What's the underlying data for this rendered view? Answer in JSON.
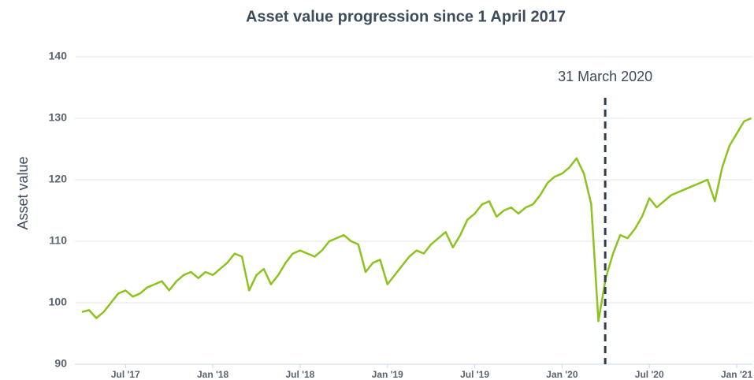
{
  "chart_data": {
    "type": "line",
    "title": "Asset value progression since 1 April 2017",
    "ylabel": "Asset value",
    "xlim": [
      2017.21,
      2021.09
    ],
    "ylim": [
      90,
      140
    ],
    "yticks": [
      90,
      100,
      110,
      120,
      130,
      140
    ],
    "xticks": [
      {
        "value": 2017.5,
        "label": "Jul '17"
      },
      {
        "value": 2018.0,
        "label": "Jan '18"
      },
      {
        "value": 2018.5,
        "label": "Jul '18"
      },
      {
        "value": 2019.0,
        "label": "Jan '19"
      },
      {
        "value": 2019.5,
        "label": "Jul '19"
      },
      {
        "value": 2020.0,
        "label": "Jan '20"
      },
      {
        "value": 2020.5,
        "label": "Jul '20"
      },
      {
        "value": 2021.0,
        "label": "Jan '21"
      }
    ],
    "grid": true,
    "annotation": {
      "x": 2020.247,
      "label": "31 March 2020",
      "color": "#2f3e4e"
    },
    "x": [
      2017.25,
      2017.292,
      2017.333,
      2017.375,
      2017.417,
      2017.458,
      2017.5,
      2017.542,
      2017.583,
      2017.625,
      2017.667,
      2017.708,
      2017.75,
      2017.792,
      2017.833,
      2017.875,
      2017.917,
      2017.958,
      2018.0,
      2018.042,
      2018.083,
      2018.125,
      2018.167,
      2018.208,
      2018.25,
      2018.292,
      2018.333,
      2018.375,
      2018.417,
      2018.458,
      2018.5,
      2018.542,
      2018.583,
      2018.625,
      2018.667,
      2018.708,
      2018.75,
      2018.792,
      2018.833,
      2018.875,
      2018.917,
      2018.958,
      2019.0,
      2019.042,
      2019.083,
      2019.125,
      2019.167,
      2019.208,
      2019.25,
      2019.292,
      2019.333,
      2019.375,
      2019.417,
      2019.458,
      2019.5,
      2019.542,
      2019.583,
      2019.625,
      2019.667,
      2019.708,
      2019.75,
      2019.792,
      2019.833,
      2019.875,
      2019.917,
      2019.958,
      2020.0,
      2020.042,
      2020.083,
      2020.125,
      2020.167,
      2020.208,
      2020.25,
      2020.292,
      2020.333,
      2020.375,
      2020.417,
      2020.458,
      2020.5,
      2020.542,
      2020.583,
      2020.625,
      2020.667,
      2020.708,
      2020.75,
      2020.792,
      2020.833,
      2020.875,
      2020.917,
      2020.958,
      2021.0,
      2021.042,
      2021.083
    ],
    "series": [
      {
        "color": "#8dc21f",
        "values": [
          98.5,
          98.8,
          97.5,
          98.5,
          100,
          101.5,
          102,
          101,
          101.5,
          102.5,
          103,
          103.5,
          102,
          103.5,
          104.5,
          105,
          104,
          105,
          104.5,
          105.5,
          106.5,
          108,
          107.5,
          102,
          104.5,
          105.5,
          103,
          104.5,
          106.5,
          108,
          108.5,
          108,
          107.5,
          108.5,
          110,
          110.5,
          111,
          110,
          109.5,
          105,
          106.5,
          107,
          103,
          104.5,
          106,
          107.5,
          108.5,
          108,
          109.5,
          110.5,
          111.5,
          109,
          111,
          113.5,
          114.5,
          116,
          116.5,
          114,
          115,
          115.5,
          114.5,
          115.5,
          116,
          117.5,
          119.5,
          120.5,
          121,
          122,
          123.5,
          121,
          116,
          97,
          104,
          108,
          111,
          110.5,
          112,
          114,
          117,
          115.5,
          116.5,
          117.5,
          118,
          118.5,
          119,
          119.5,
          120,
          116.5,
          122,
          125.5,
          127.5,
          129.5,
          130
        ]
      }
    ]
  }
}
